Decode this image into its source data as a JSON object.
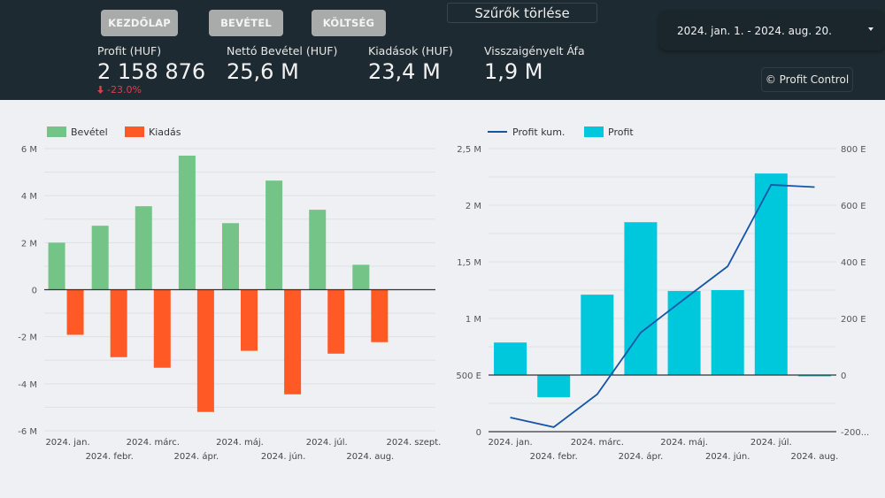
{
  "nav": {
    "buttons": [
      "KEZDŐLAP",
      "BEVÉTEL",
      "KÖLTSÉG"
    ],
    "clear_filters": "Szűrők törlése",
    "date_range": "2024. jan. 1. - 2024. aug. 20.",
    "credit": "© Profit Control"
  },
  "kpis": [
    {
      "label": "Profit (HUF)",
      "value": "2 158 876",
      "delta": "-23.0%",
      "delta_direction": "down"
    },
    {
      "label": "Nettó Bevétel (HUF)",
      "value": "25,6 M"
    },
    {
      "label": "Kiadások (HUF)",
      "value": "23,4 M"
    },
    {
      "label": "Visszaigényelt Áfa",
      "value": "1,9 M"
    }
  ],
  "colors": {
    "header_bg": "#1e2a31",
    "income": "#74c487",
    "expense": "#ff5a26",
    "profit_bar": "#00c8dc",
    "profit_line": "#1455a8",
    "delta_negative": "#d9414b"
  },
  "chart_data": [
    {
      "type": "bar",
      "title": "",
      "legend": [
        "Bevétel",
        "Kiadás"
      ],
      "legend_position": "top-left",
      "categories": [
        "2024. jan.",
        "2024. febr.",
        "2024. márc.",
        "2024. ápr.",
        "2024. máj.",
        "2024. jún.",
        "2024. júl.",
        "2024. aug.",
        "2024. szept."
      ],
      "series": [
        {
          "name": "Bevétel",
          "values": [
            2.0,
            2.72,
            3.55,
            5.7,
            2.83,
            4.64,
            3.4,
            1.06,
            null
          ]
        },
        {
          "name": "Kiadás",
          "values": [
            -1.92,
            -2.87,
            -3.32,
            -5.2,
            -2.6,
            -4.45,
            -2.72,
            -2.23,
            null
          ]
        }
      ],
      "units": "M HUF",
      "ylim": [
        -6,
        6
      ],
      "yticks": [
        6,
        4,
        2,
        0,
        -2,
        -4,
        -6
      ],
      "ytick_labels": [
        "6 M",
        "4 M",
        "2 M",
        "0",
        "-2 M",
        "-4 M",
        "-6 M"
      ],
      "grid": true
    },
    {
      "type": "bar",
      "title": "",
      "legend": [
        "Profit kum.",
        "Profit"
      ],
      "legend_position": "top-left",
      "categories": [
        "2024. jan.",
        "2024. febr.",
        "2024. márc.",
        "2024. ápr.",
        "2024. máj.",
        "2024. jún.",
        "2024. júl.",
        "2024. aug."
      ],
      "series": [
        {
          "name": "Profit kum.",
          "type": "line",
          "axis": "left",
          "units": "M HUF",
          "values": [
            0.125,
            0.04,
            0.33,
            0.875,
            1.17,
            1.46,
            2.18,
            2.16
          ]
        },
        {
          "name": "Profit",
          "type": "bar",
          "axis": "right",
          "units": "E HUF",
          "values": [
            115,
            -78,
            284,
            540,
            297,
            300,
            712,
            -3
          ]
        }
      ],
      "left_axis": {
        "ylim": [
          0,
          2.5
        ],
        "ticks": [
          2.5,
          2,
          1.5,
          1,
          0.5,
          0
        ],
        "tick_labels": [
          "2,5 M",
          "2 M",
          "1,5 M",
          "1 M",
          "500 E",
          "0"
        ]
      },
      "right_axis": {
        "ylim": [
          -200,
          800
        ],
        "ticks": [
          800,
          600,
          400,
          200,
          0,
          -200
        ],
        "tick_labels": [
          "800 E",
          "600 E",
          "400 E",
          "200 E",
          "0",
          "-200..."
        ]
      },
      "grid": true
    }
  ]
}
